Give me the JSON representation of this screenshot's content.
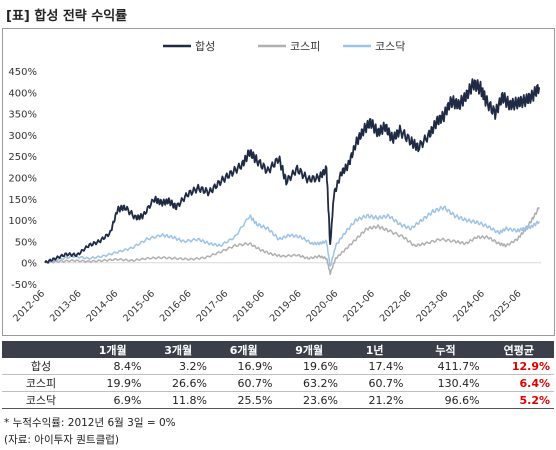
{
  "title": "[표] 합성 전략 수익률",
  "chart_data": {
    "type": "line",
    "yticks": [
      "450%",
      "400%",
      "350%",
      "300%",
      "250%",
      "200%",
      "150%",
      "100%",
      "50%",
      "0%",
      "-50%"
    ],
    "ylim": [
      -50,
      450
    ],
    "xticks": [
      "2012-06",
      "2013-06",
      "2014-06",
      "2015-06",
      "2016-06",
      "2017-06",
      "2018-06",
      "2019-06",
      "2020-06",
      "2021-06",
      "2022-06",
      "2023-06",
      "2024-06",
      "2025-06"
    ],
    "legend_position": "top-center",
    "series": [
      {
        "name": "합성",
        "color": "#1f2a44",
        "x": [
          2012.42,
          2012.7,
          2013.0,
          2013.3,
          2013.6,
          2013.9,
          2014.2,
          2014.4,
          2014.6,
          2014.9,
          2015.1,
          2015.4,
          2015.6,
          2015.8,
          2016.0,
          2016.3,
          2016.6,
          2016.9,
          2017.2,
          2017.5,
          2017.8,
          2018.0,
          2018.2,
          2018.5,
          2018.8,
          2019.0,
          2019.3,
          2019.6,
          2019.9,
          2020.1,
          2020.2,
          2020.3,
          2020.5,
          2020.7,
          2020.9,
          2021.1,
          2021.3,
          2021.5,
          2021.7,
          2021.9,
          2022.1,
          2022.4,
          2022.6,
          2022.9,
          2023.1,
          2023.3,
          2023.5,
          2023.7,
          2023.9,
          2024.1,
          2024.3,
          2024.45,
          2024.7,
          2024.9,
          2025.1,
          2025.3,
          2025.5,
          2025.7,
          2025.9
        ],
        "y": [
          0,
          10,
          20,
          18,
          40,
          50,
          70,
          125,
          130,
          105,
          110,
          150,
          140,
          145,
          130,
          160,
          175,
          165,
          190,
          210,
          230,
          260,
          240,
          215,
          245,
          190,
          220,
          195,
          200,
          220,
          40,
          160,
          210,
          230,
          280,
          310,
          330,
          305,
          320,
          290,
          310,
          285,
          270,
          300,
          330,
          345,
          380,
          370,
          390,
          420,
          410,
          380,
          350,
          390,
          370,
          375,
          380,
          390,
          412
        ]
      },
      {
        "name": "코스피",
        "color": "#b0b0b0",
        "x": [
          2012.42,
          2012.8,
          2013.2,
          2013.6,
          2014.0,
          2014.4,
          2014.8,
          2015.2,
          2015.6,
          2016.0,
          2016.4,
          2016.8,
          2017.2,
          2017.6,
          2018.0,
          2018.3,
          2018.6,
          2018.9,
          2019.3,
          2019.6,
          2019.9,
          2020.1,
          2020.2,
          2020.35,
          2020.6,
          2020.9,
          2021.2,
          2021.5,
          2021.8,
          2022.2,
          2022.5,
          2022.8,
          2023.2,
          2023.6,
          2023.9,
          2024.2,
          2024.5,
          2024.8,
          2025.0,
          2025.3,
          2025.5,
          2025.7,
          2025.9
        ],
        "y": [
          0,
          3,
          5,
          3,
          5,
          8,
          5,
          10,
          12,
          10,
          8,
          12,
          25,
          40,
          45,
          30,
          20,
          15,
          18,
          10,
          15,
          10,
          -25,
          10,
          30,
          55,
          80,
          85,
          75,
          60,
          40,
          45,
          55,
          50,
          45,
          60,
          60,
          45,
          40,
          55,
          75,
          100,
          130
        ]
      },
      {
        "name": "코스닥",
        "color": "#9dc3e6",
        "x": [
          2012.42,
          2012.8,
          2013.2,
          2013.6,
          2014.0,
          2014.4,
          2014.8,
          2015.2,
          2015.6,
          2015.9,
          2016.2,
          2016.6,
          2016.9,
          2017.2,
          2017.6,
          2018.0,
          2018.2,
          2018.5,
          2018.8,
          2019.1,
          2019.4,
          2019.7,
          2019.9,
          2020.1,
          2020.2,
          2020.35,
          2020.6,
          2020.9,
          2021.2,
          2021.5,
          2021.8,
          2022.1,
          2022.4,
          2022.7,
          2023.0,
          2023.3,
          2023.6,
          2023.9,
          2024.2,
          2024.5,
          2024.8,
          2025.0,
          2025.3,
          2025.5,
          2025.7,
          2025.9
        ],
        "y": [
          0,
          8,
          15,
          10,
          15,
          25,
          35,
          55,
          65,
          60,
          50,
          55,
          45,
          40,
          60,
          110,
          90,
          80,
          55,
          65,
          60,
          45,
          45,
          50,
          -10,
          40,
          70,
          100,
          110,
          105,
          110,
          90,
          80,
          100,
          120,
          130,
          110,
          100,
          95,
          85,
          70,
          80,
          75,
          80,
          85,
          97
        ]
      }
    ]
  },
  "table": {
    "headers": [
      "",
      "1개월",
      "3개월",
      "6개월",
      "9개월",
      "1년",
      "누적",
      "연평균"
    ],
    "rows": [
      [
        "합성",
        "8.4%",
        "3.2%",
        "16.9%",
        "19.6%",
        "17.4%",
        "411.7%",
        "12.9%"
      ],
      [
        "코스피",
        "19.9%",
        "26.6%",
        "60.7%",
        "63.2%",
        "60.7%",
        "130.4%",
        "6.4%"
      ],
      [
        "코스닥",
        "6.9%",
        "11.8%",
        "25.5%",
        "23.6%",
        "21.2%",
        "96.6%",
        "5.2%"
      ]
    ]
  },
  "notes": {
    "footnote": "* 누적수익률: 2012년 6월 3일 = 0%",
    "source": "(자료: 아이투자 퀀트클럽)"
  }
}
